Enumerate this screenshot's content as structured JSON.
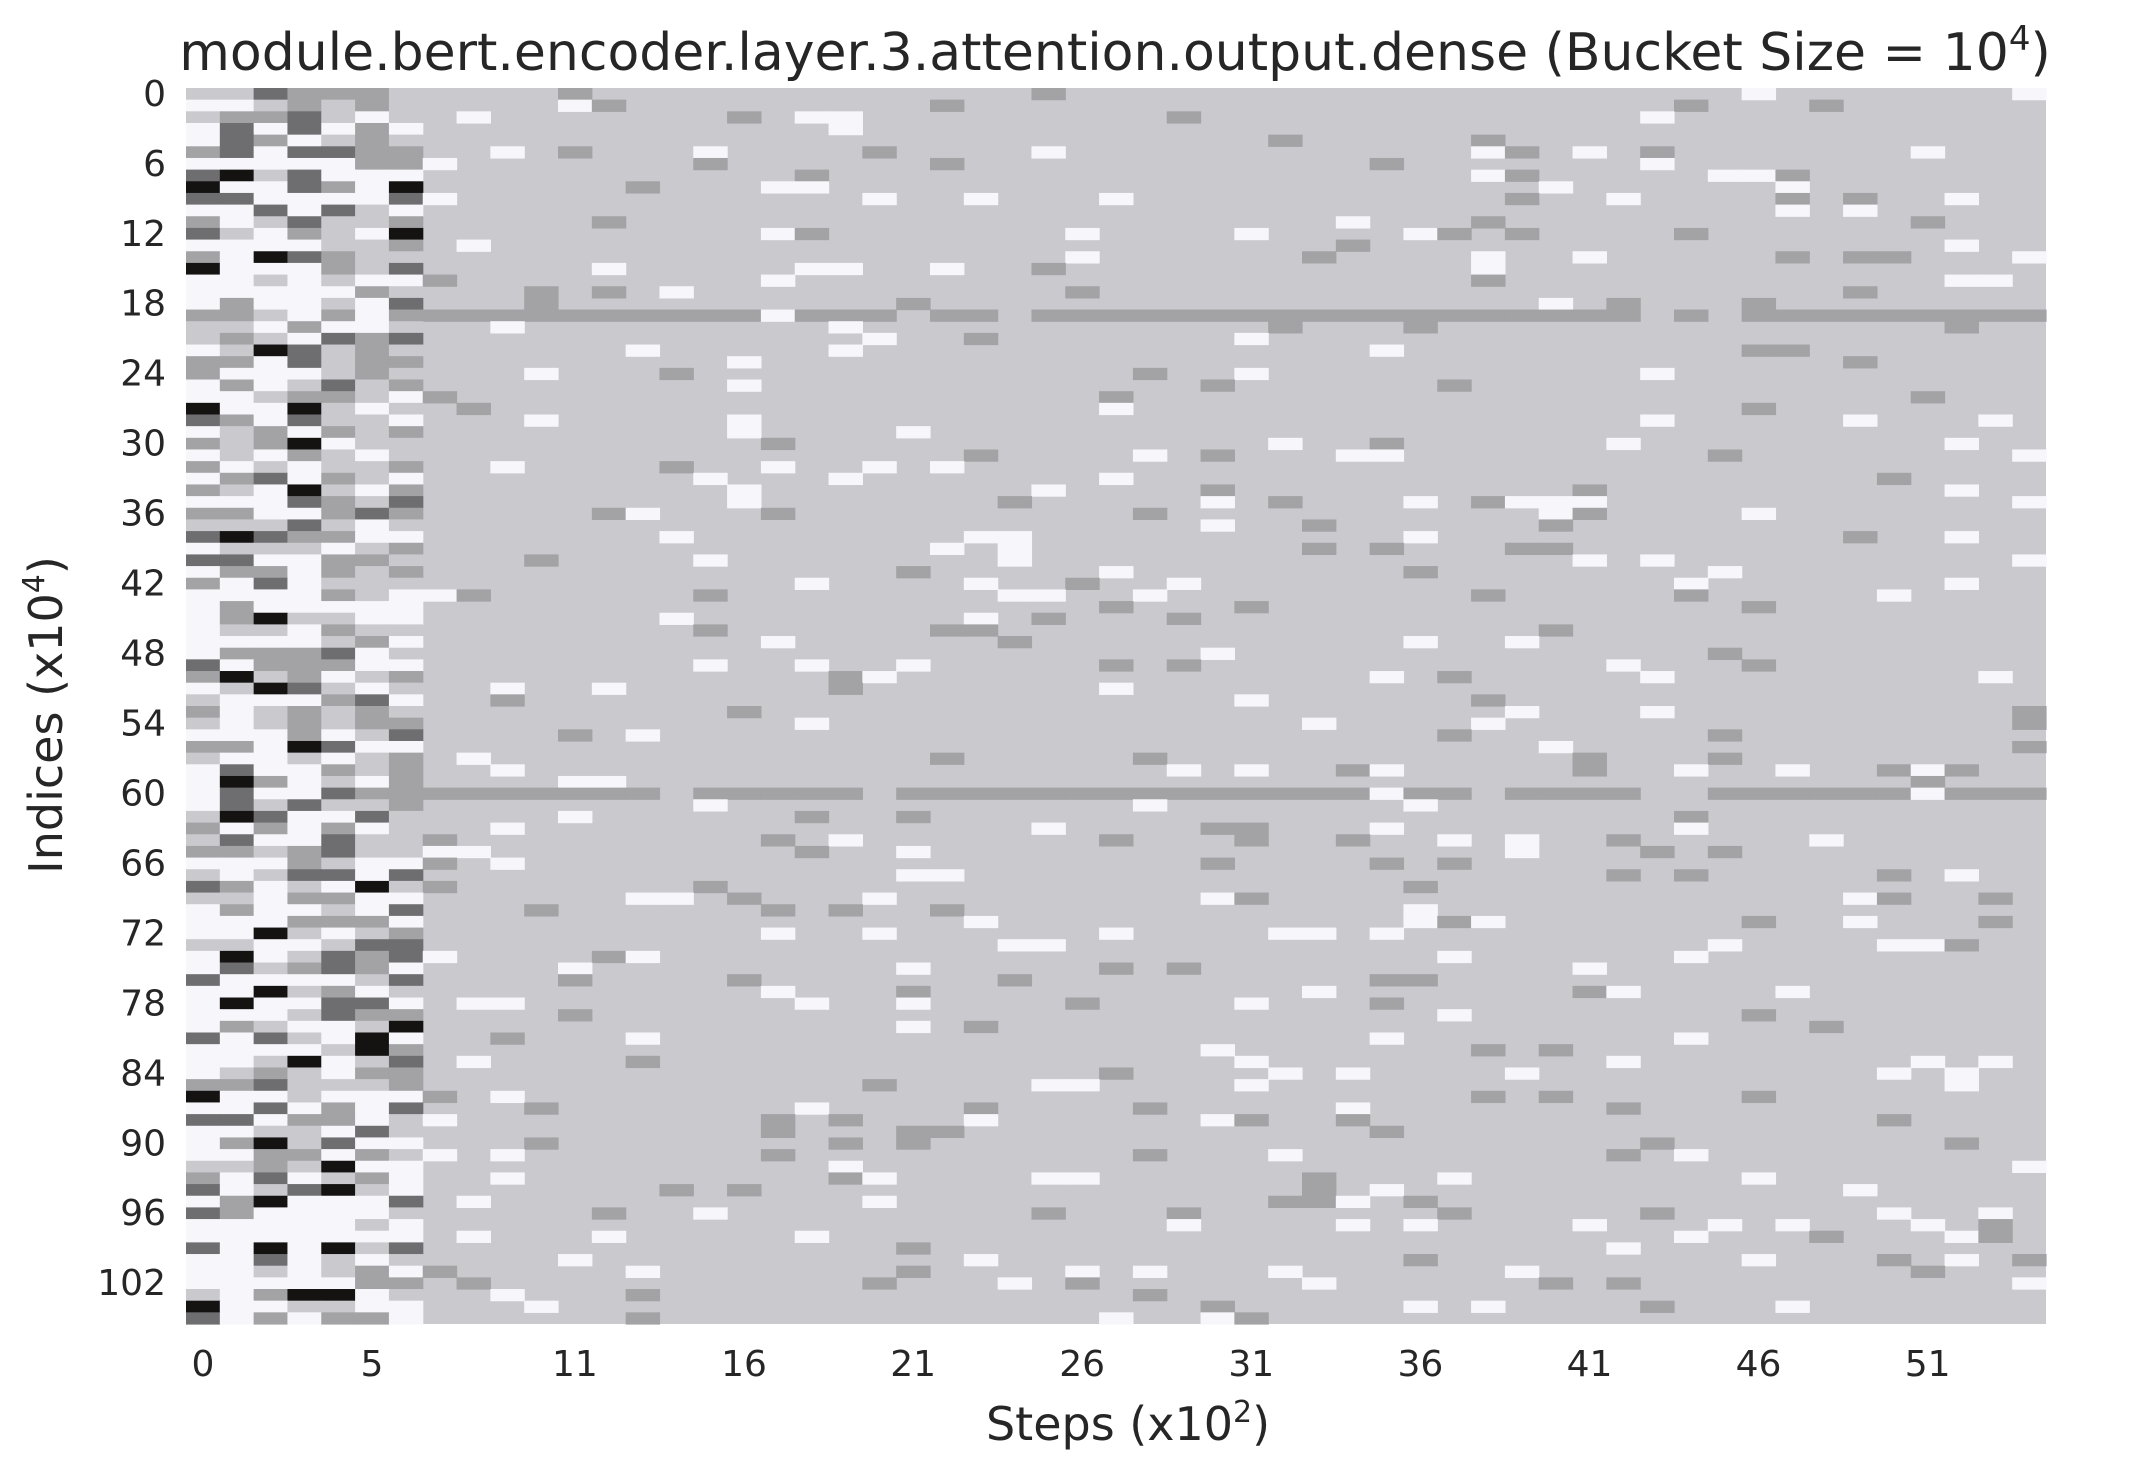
{
  "chart_data": {
    "type": "heatmap",
    "title": "module.bert.encoder.layer.3.attention.output.dense (Bucket Size = 10",
    "title_superscript": "4",
    "title_suffix": ")",
    "xlabel": "Steps (x10",
    "xlabel_superscript": "2",
    "xlabel_suffix": ")",
    "ylabel": "Indices (x10",
    "ylabel_superscript": "4",
    "ylabel_suffix": ")",
    "x_ticks": [
      0,
      5,
      11,
      16,
      21,
      26,
      31,
      36,
      41,
      46,
      51
    ],
    "y_ticks": [
      0,
      6,
      12,
      18,
      24,
      30,
      36,
      42,
      48,
      54,
      60,
      66,
      72,
      78,
      84,
      90,
      96,
      102
    ],
    "n_cols": 55,
    "n_rows": 106,
    "grid": false,
    "colormap": "grayscale (white = low, black = high)",
    "colors": {
      "white": "#f7f7fb",
      "light": "#cac9ce",
      "mid": "#a3a3a6",
      "dark": "#6e6d70",
      "black": "#141312"
    },
    "highlight_rows": [
      19,
      60
    ],
    "highlight_rows_value": "mid"
  }
}
